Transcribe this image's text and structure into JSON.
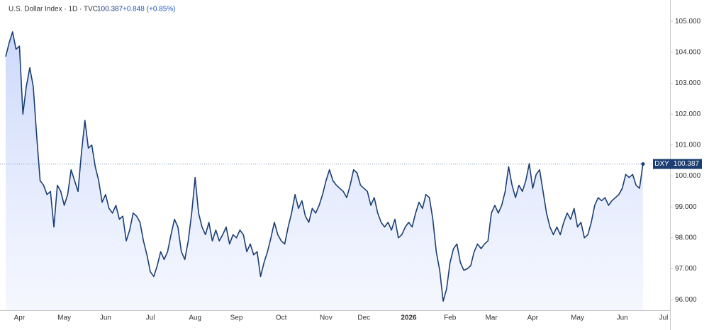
{
  "chart_data": {
    "type": "line",
    "title": "U.S. Dollar Index · 1D · TVC",
    "change": "+0.848 (+0.85%)",
    "ylim": [
      95.66,
      105.69
    ],
    "yticks": [
      {
        "value": 96,
        "label": "96.000"
      },
      {
        "value": 97,
        "label": "97.000"
      },
      {
        "value": 98,
        "label": "98.000"
      },
      {
        "value": 99,
        "label": "99.000"
      },
      {
        "value": 100,
        "label": "100.000"
      },
      {
        "value": 101,
        "label": "101.000"
      },
      {
        "value": 102,
        "label": "102.000"
      },
      {
        "value": 103,
        "label": "103.000"
      },
      {
        "value": 104,
        "label": "104.000"
      },
      {
        "value": 105,
        "label": "105.000"
      }
    ],
    "grid": false,
    "categories": [
      null,
      null,
      null,
      null,
      "Apr",
      null,
      null,
      null,
      null,
      null,
      null,
      null,
      null,
      null,
      null,
      null,
      null,
      "May",
      null,
      null,
      null,
      null,
      null,
      null,
      null,
      null,
      null,
      null,
      null,
      "Jun",
      null,
      null,
      null,
      null,
      null,
      null,
      null,
      null,
      null,
      null,
      null,
      null,
      "Jul",
      null,
      null,
      null,
      null,
      null,
      null,
      null,
      null,
      null,
      null,
      null,
      null,
      "Aug",
      null,
      null,
      null,
      null,
      null,
      null,
      null,
      null,
      null,
      null,
      null,
      "Sep",
      null,
      null,
      null,
      null,
      null,
      null,
      null,
      null,
      null,
      null,
      null,
      null,
      "Oct",
      null,
      null,
      null,
      null,
      null,
      null,
      null,
      null,
      null,
      null,
      null,
      null,
      "Nov",
      null,
      null,
      null,
      null,
      null,
      null,
      null,
      null,
      null,
      null,
      "Dec",
      null,
      null,
      null,
      null,
      null,
      null,
      null,
      null,
      null,
      null,
      null,
      null,
      "2026",
      null,
      null,
      null,
      null,
      null,
      null,
      null,
      null,
      null,
      null,
      null,
      "Feb",
      null,
      null,
      null,
      null,
      null,
      null,
      null,
      null,
      null,
      null,
      null,
      "Mar",
      null,
      null,
      null,
      null,
      null,
      null,
      null,
      null,
      null,
      null,
      null,
      "Apr",
      null,
      null,
      null,
      null,
      null,
      null,
      null,
      null,
      null,
      null,
      null,
      null,
      "May",
      null,
      null,
      null,
      null,
      null,
      null,
      null,
      null,
      null,
      null,
      null,
      null,
      "Jun",
      null,
      null,
      null,
      null,
      null,
      null,
      null,
      null,
      null,
      null,
      null,
      "Jul"
    ],
    "series": [
      {
        "name": "DXY",
        "color": "#1b3f73",
        "values": [
          103.86,
          104.3,
          104.66,
          104.1,
          104.2,
          102.0,
          102.9,
          103.5,
          102.9,
          101.3,
          99.85,
          99.7,
          99.4,
          99.5,
          98.35,
          99.7,
          99.5,
          99.05,
          99.4,
          100.2,
          99.85,
          99.5,
          100.75,
          101.8,
          100.9,
          101.0,
          100.3,
          99.85,
          99.15,
          99.4,
          98.95,
          98.8,
          99.05,
          98.6,
          98.7,
          97.9,
          98.25,
          98.8,
          98.7,
          98.5,
          97.9,
          97.45,
          96.9,
          96.75,
          97.1,
          97.55,
          97.3,
          97.55,
          98.1,
          98.6,
          98.35,
          97.55,
          97.3,
          97.9,
          98.8,
          99.95,
          98.8,
          98.35,
          98.1,
          98.5,
          97.9,
          98.25,
          97.9,
          98.1,
          98.35,
          97.8,
          98.1,
          98.0,
          98.25,
          98.1,
          97.55,
          97.8,
          97.45,
          97.55,
          96.75,
          97.2,
          97.55,
          98.0,
          98.5,
          98.1,
          97.9,
          97.8,
          98.35,
          98.8,
          99.4,
          98.95,
          99.2,
          98.7,
          98.5,
          98.95,
          98.8,
          99.05,
          99.4,
          99.85,
          100.2,
          99.85,
          99.7,
          99.6,
          99.5,
          99.3,
          99.7,
          100.2,
          100.1,
          99.7,
          99.6,
          99.5,
          99.05,
          99.3,
          98.8,
          98.5,
          98.35,
          98.5,
          98.25,
          98.6,
          98.0,
          98.1,
          98.35,
          98.5,
          98.35,
          98.8,
          99.15,
          98.95,
          99.4,
          99.3,
          98.6,
          97.55,
          96.95,
          95.95,
          96.35,
          97.2,
          97.65,
          97.8,
          97.2,
          96.95,
          97.0,
          97.1,
          97.55,
          97.8,
          97.65,
          97.8,
          97.9,
          98.8,
          99.05,
          98.8,
          99.05,
          99.5,
          100.3,
          99.7,
          99.3,
          99.7,
          99.5,
          99.85,
          100.4,
          99.6,
          100.05,
          100.2,
          99.5,
          98.8,
          98.35,
          98.1,
          98.35,
          98.1,
          98.5,
          98.8,
          98.6,
          98.95,
          98.35,
          98.5,
          98.0,
          98.1,
          98.5,
          99.05,
          99.3,
          99.2,
          99.3,
          99.05,
          99.2,
          99.3,
          99.4,
          99.6,
          100.05,
          99.95,
          100.05,
          99.7,
          99.6,
          100.387,
          null,
          null,
          null,
          null,
          null,
          null
        ]
      }
    ]
  }
}
